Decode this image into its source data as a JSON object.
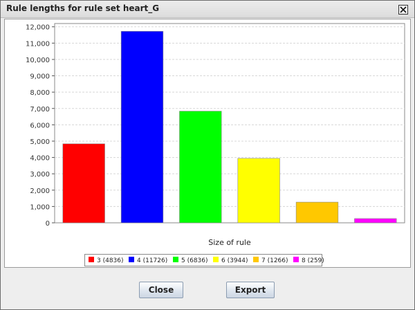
{
  "window": {
    "title": "Rule lengths for rule set heart_G"
  },
  "buttons": {
    "close_label": "Close",
    "export_label": "Export"
  },
  "colors": {
    "bar_3": "#ff0000",
    "bar_4": "#0000ff",
    "bar_5": "#00ff00",
    "bar_6": "#ffff00",
    "bar_7": "#ffc800",
    "bar_8": "#ff00ff"
  },
  "chart_data": {
    "type": "bar",
    "xlabel": "Size of rule",
    "ylabel": "",
    "ylim": [
      0,
      12200
    ],
    "yticks": [
      0,
      1000,
      2000,
      3000,
      4000,
      5000,
      6000,
      7000,
      8000,
      9000,
      10000,
      11000,
      12000
    ],
    "ytick_labels": [
      "0",
      "1,000",
      "2,000",
      "3,000",
      "4,000",
      "5,000",
      "6,000",
      "7,000",
      "8,000",
      "9,000",
      "10,000",
      "11,000",
      "12,000"
    ],
    "grid": true,
    "legend_position": "bottom",
    "categories": [
      "3",
      "4",
      "5",
      "6",
      "7",
      "8"
    ],
    "values": [
      4836,
      11726,
      6836,
      3944,
      1266,
      259
    ],
    "legend_labels": [
      "3 (4836)",
      "4 (11726)",
      "5 (6836)",
      "6 (3944)",
      "7 (1266)",
      "8 (259)"
    ],
    "colors": [
      "#ff0000",
      "#0000ff",
      "#00ff00",
      "#ffff00",
      "#ffc800",
      "#ff00ff"
    ]
  }
}
